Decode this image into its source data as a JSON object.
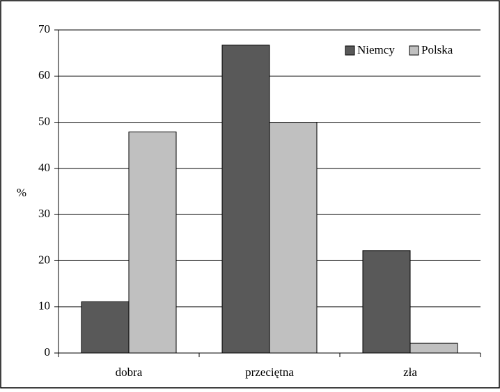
{
  "chart_data": {
    "type": "bar",
    "categories": [
      "dobra",
      "przeciętna",
      "zła"
    ],
    "series": [
      {
        "name": "Niemcy",
        "values": [
          11.1,
          66.7,
          22.2
        ]
      },
      {
        "name": "Polska",
        "values": [
          47.9,
          50.0,
          2.1
        ]
      }
    ],
    "title": "",
    "xlabel": "",
    "ylabel": "%",
    "ylim": [
      0,
      70
    ],
    "yticks": [
      "0",
      "10",
      "20",
      "30",
      "40",
      "50",
      "60",
      "70"
    ],
    "grid": true,
    "legend_position": "top-right",
    "colors": {
      "Niemcy": "#595959",
      "Polska": "#c0c0c0",
      "edge": "#000000"
    }
  }
}
